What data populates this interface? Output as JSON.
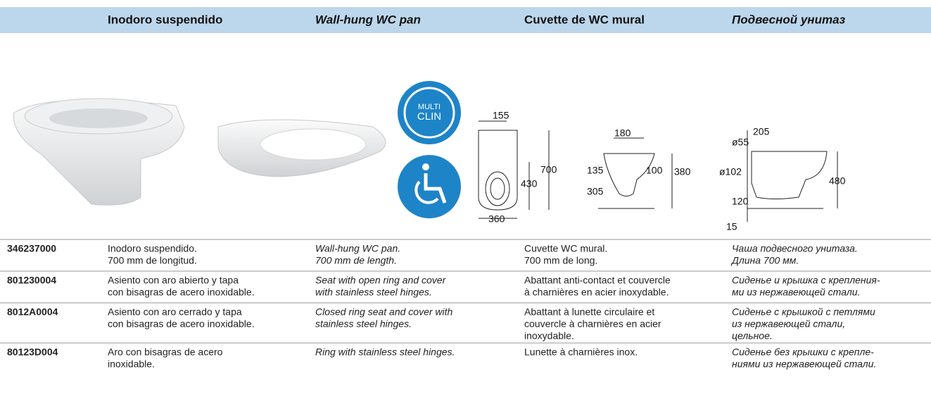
{
  "header": {
    "titles": [
      "Inodoro suspendido",
      "Wall-hung WC pan",
      "Cuvette de WC mural",
      "Подвесной унитаз"
    ]
  },
  "badge": {
    "lines": [
      "MULTI",
      "CLIN"
    ]
  },
  "drawings": {
    "front": [
      "155",
      "700",
      "430",
      "360"
    ],
    "side": [
      "180",
      "135",
      "100",
      "380",
      "305"
    ],
    "profile": [
      "ø55",
      "205",
      "ø102",
      "480",
      "120",
      "15"
    ]
  },
  "table": {
    "rows": [
      {
        "code": "346237000",
        "cells": [
          [
            "Inodoro suspendido.",
            "700 mm de longitud."
          ],
          [
            "Wall-hung WC pan.",
            "700 mm de length."
          ],
          [
            "Cuvette WC mural.",
            "700 mm de long."
          ],
          [
            "Чаша подвесного унитаза.",
            "Длина 700 мм."
          ]
        ]
      },
      {
        "code": "801230004",
        "cells": [
          [
            "Asiento con aro abierto y tapa",
            "con bisagras de acero inoxidable."
          ],
          [
            "Seat with open ring and cover",
            "with stainless steel hinges."
          ],
          [
            "Abattant anti-contact et couvercle",
            "à charnières en acier inoxydable."
          ],
          [
            "Сиденье и крышка с крепления-",
            "ми из нержавеющей стали."
          ]
        ]
      },
      {
        "code": "8012A0004",
        "cells": [
          [
            "Asiento con aro cerrado y tapa",
            "con bisagras de acero inoxidable."
          ],
          [
            "Closed ring seat and cover with",
            "stainless steel hinges."
          ],
          [
            "Abattant à lunette circulaire et",
            "couvercle à charnières en acier",
            "inoxydable."
          ],
          [
            "Сиденье с крышкой с петлями",
            "из нержавеющей стали,",
            "цельное."
          ]
        ]
      },
      {
        "code": "80123D004",
        "cells": [
          [
            "Aro con bisagras de acero",
            "inoxidable."
          ],
          [
            "Ring with stainless steel hinges."
          ],
          [
            "Lunette à charnières inox."
          ],
          [
            "Сиденье без крышки с крепле-",
            "ниями из нержавеющей стали."
          ]
        ]
      }
    ]
  }
}
